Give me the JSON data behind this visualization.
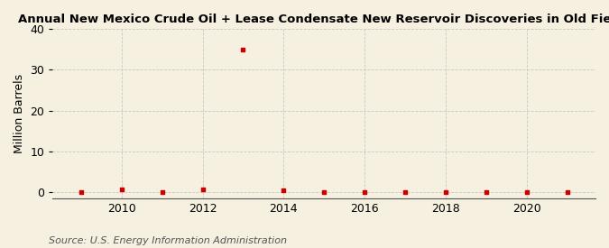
{
  "title": "Annual New Mexico Crude Oil + Lease Condensate New Reservoir Discoveries in Old Fields",
  "ylabel": "Million Barrels",
  "source": "Source: U.S. Energy Information Administration",
  "background_color": "#f5f0e0",
  "years": [
    2009,
    2010,
    2011,
    2012,
    2013,
    2014,
    2015,
    2016,
    2017,
    2018,
    2019,
    2020,
    2021
  ],
  "values": [
    0.05,
    0.7,
    0.05,
    0.7,
    35.0,
    0.6,
    0.15,
    0.05,
    0.05,
    0.05,
    0.05,
    0.05,
    0.05
  ],
  "marker_color": "#cc0000",
  "marker": "s",
  "marker_size": 3.5,
  "xlim": [
    2008.3,
    2021.7
  ],
  "ylim": [
    -1.5,
    40
  ],
  "yticks": [
    0,
    10,
    20,
    30,
    40
  ],
  "xticks": [
    2010,
    2012,
    2014,
    2016,
    2018,
    2020
  ],
  "grid_color": "#c8c8c8",
  "grid_linestyle": "--",
  "title_fontsize": 9.5,
  "axis_fontsize": 9,
  "source_fontsize": 8
}
